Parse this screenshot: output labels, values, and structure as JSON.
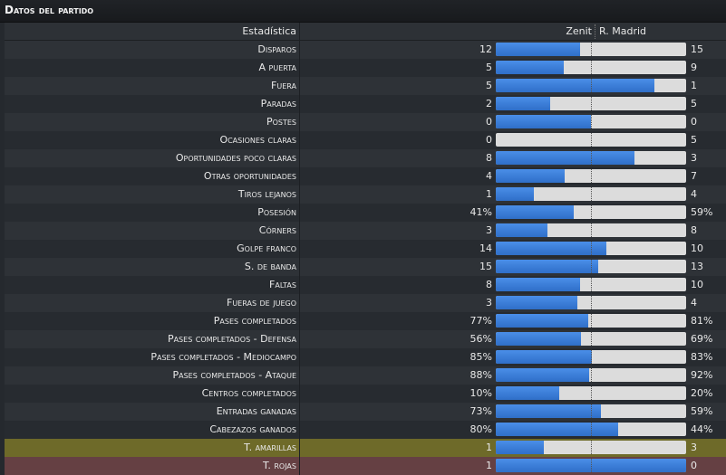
{
  "title": "Datos del partido",
  "header": {
    "stat_label": "Estadística",
    "home_team": "Zenit",
    "away_team": "R. Madrid"
  },
  "colors": {
    "home_bar": "#3a7fdc",
    "away_bar": "#dcdcdc",
    "yellow_row": "#6e6a29",
    "red_row": "#654043"
  },
  "stats": [
    {
      "label": "Disparos",
      "home": "12",
      "away": "15",
      "home_share": 0.444
    },
    {
      "label": "A puerta",
      "home": "5",
      "away": "9",
      "home_share": 0.357
    },
    {
      "label": "Fuera",
      "home": "5",
      "away": "1",
      "home_share": 0.833
    },
    {
      "label": "Paradas",
      "home": "2",
      "away": "5",
      "home_share": 0.286
    },
    {
      "label": "Postes",
      "home": "0",
      "away": "0",
      "home_share": 0.5
    },
    {
      "label": "Ocasiones claras",
      "home": "0",
      "away": "5",
      "home_share": 0.0
    },
    {
      "label": "Oportunidades poco claras",
      "home": "8",
      "away": "3",
      "home_share": 0.727
    },
    {
      "label": "Otras oportunidades",
      "home": "4",
      "away": "7",
      "home_share": 0.364
    },
    {
      "label": "Tiros lejanos",
      "home": "1",
      "away": "4",
      "home_share": 0.2
    },
    {
      "label": "Posesión",
      "home": "41%",
      "away": "59%",
      "home_share": 0.41
    },
    {
      "label": "Córners",
      "home": "3",
      "away": "8",
      "home_share": 0.273
    },
    {
      "label": "Golpe franco",
      "home": "14",
      "away": "10",
      "home_share": 0.583
    },
    {
      "label": "S. de banda",
      "home": "15",
      "away": "13",
      "home_share": 0.536
    },
    {
      "label": "Faltas",
      "home": "8",
      "away": "10",
      "home_share": 0.444
    },
    {
      "label": "Fueras de juego",
      "home": "3",
      "away": "4",
      "home_share": 0.429
    },
    {
      "label": "Pases completados",
      "home": "77%",
      "away": "81%",
      "home_share": 0.487
    },
    {
      "label": "Pases completados - Defensa",
      "home": "56%",
      "away": "69%",
      "home_share": 0.448
    },
    {
      "label": "Pases completados - Mediocampo",
      "home": "85%",
      "away": "83%",
      "home_share": 0.506
    },
    {
      "label": "Pases completados - Ataque",
      "home": "88%",
      "away": "92%",
      "home_share": 0.489
    },
    {
      "label": "Centros completados",
      "home": "10%",
      "away": "20%",
      "home_share": 0.333
    },
    {
      "label": "Entradas ganadas",
      "home": "73%",
      "away": "59%",
      "home_share": 0.553
    },
    {
      "label": "Cabezazos ganados",
      "home": "80%",
      "away": "44%",
      "home_share": 0.645
    },
    {
      "label": "T. amarillas",
      "home": "1",
      "away": "3",
      "home_share": 0.25,
      "highlight": "yellow"
    },
    {
      "label": "T. rojas",
      "home": "1",
      "away": "0",
      "home_share": 1.0,
      "highlight": "red"
    }
  ]
}
